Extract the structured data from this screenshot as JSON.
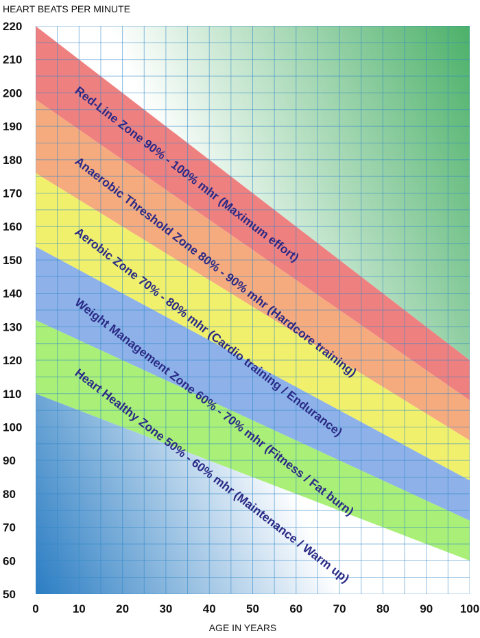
{
  "chart_data": {
    "type": "area",
    "title": "",
    "ylabel": "HEART BEATS PER MINUTE",
    "xlabel": "AGE IN YEARS",
    "xlim": [
      0,
      100
    ],
    "ylim": [
      50,
      220
    ],
    "grid": true,
    "x_ticks": [
      "0",
      "10",
      "20",
      "30",
      "40",
      "50",
      "60",
      "70",
      "80",
      "90",
      "100"
    ],
    "y_ticks": [
      "220",
      "210",
      "200",
      "190",
      "180",
      "170",
      "160",
      "150",
      "140",
      "130",
      "120",
      "110",
      "100",
      "90",
      "80",
      "70",
      "60",
      "50"
    ],
    "max_heart_rate_line": {
      "x": [
        0,
        100
      ],
      "y": [
        220,
        120
      ]
    },
    "zones": [
      {
        "label": "Red-Line Zone 90% - 100% mhr (Maximum effort)",
        "lower_pct": 0.9,
        "upper_pct": 1.0,
        "color": "#ef8080"
      },
      {
        "label": "Anaerobic Threshold Zone 80% - 90% mhr (Hardcore training)",
        "lower_pct": 0.8,
        "upper_pct": 0.9,
        "color": "#f6ab7f"
      },
      {
        "label": "Aerobic Zone 70% - 80% mhr (Cardio training / Endurance)",
        "lower_pct": 0.7,
        "upper_pct": 0.8,
        "color": "#f0f06d"
      },
      {
        "label": "Weight Management Zone 60% - 70% mhr (Fitness / Fat burn)",
        "lower_pct": 0.6,
        "upper_pct": 0.7,
        "color": "#8db1e8"
      },
      {
        "label": "Heart Healthy Zone 50% - 60% mhr (Maintenance / Warm up)",
        "lower_pct": 0.5,
        "upper_pct": 0.6,
        "color": "#a9ef78"
      }
    ],
    "colors": {
      "label_text": "#2a2a86",
      "grid_line": "#2e86c8",
      "upper_gradient_dark": "#4bb068",
      "lower_gradient_dark": "#2e7fc4"
    }
  }
}
